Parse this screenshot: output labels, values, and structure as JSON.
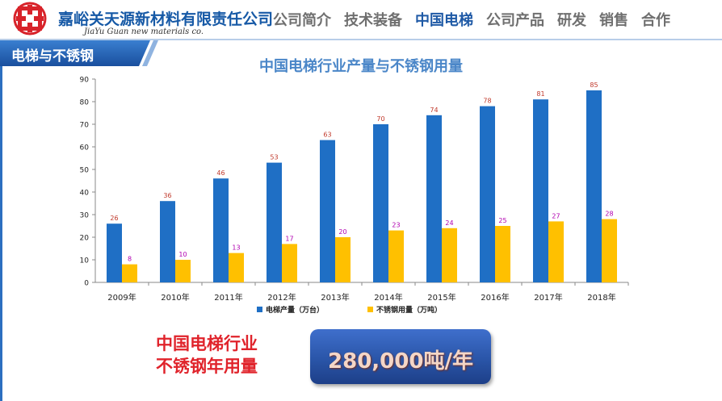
{
  "header": {
    "company_name": "嘉峪关天源新材料有限责任公司",
    "company_name_en": "JiaYu Guan  new materials co.",
    "nav": [
      {
        "label": "公司简介",
        "active": false
      },
      {
        "label": "技术装备",
        "active": false
      },
      {
        "label": "中国电梯",
        "active": true
      },
      {
        "label": "公司产品",
        "active": false
      },
      {
        "label": "研发",
        "active": false
      },
      {
        "label": "销售",
        "active": false
      },
      {
        "label": "合作",
        "active": false
      }
    ]
  },
  "section_tab": "电梯与不锈钢",
  "chart_data": {
    "type": "bar",
    "title": "中国电梯行业产量与不锈钢用量",
    "categories": [
      "2009年",
      "2010年",
      "2011年",
      "2012年",
      "2013年",
      "2014年",
      "2015年",
      "2016年",
      "2017年",
      "2018年"
    ],
    "series": [
      {
        "name": "电梯产量（万台）",
        "color": "#1f6fc5",
        "label_color": "#c0392b",
        "values": [
          26,
          36,
          46,
          53,
          63,
          70,
          74,
          78,
          81,
          85
        ]
      },
      {
        "name": "不锈钢用量（万吨）",
        "color": "#ffc000",
        "label_color": "#b000b0",
        "values": [
          8,
          10,
          13,
          17,
          20,
          23,
          24,
          25,
          27,
          28
        ]
      }
    ],
    "ylim": [
      0,
      90
    ],
    "yticks": [
      0,
      10,
      20,
      30,
      40,
      50,
      60,
      70,
      80,
      90
    ],
    "grid": false,
    "legend": "bottom"
  },
  "summary": {
    "label_line1": "中国电梯行业",
    "label_line2": "不锈钢年用量",
    "value": "280,000吨/年"
  },
  "colors": {
    "brand_blue": "#1659a6",
    "tab_blue": "#1f5fb5",
    "accent_red": "#e0232b"
  }
}
